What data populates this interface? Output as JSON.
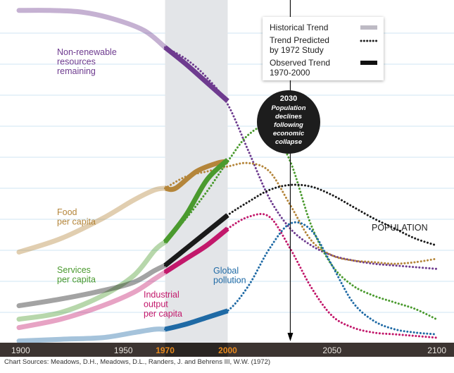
{
  "colors": {
    "nonrenewable": "#6e3b8f",
    "food": "#b4853a",
    "services": "#4a9a2e",
    "population": "#1a1a1a",
    "industrial": "#c2186b",
    "pollution": "#1f6aa5",
    "highlight_band": "#e3e5e8",
    "axis_band": "#3c3431",
    "axis_highlight": "#e8891c"
  },
  "legend": {
    "historical": "Historical Trend",
    "predicted_line1": "Trend Predicted",
    "predicted_line2": "by 1972 Study",
    "observed_line1": "Observed Trend",
    "observed_line2": "1970-2000"
  },
  "callout": {
    "year": "2030",
    "text": [
      "Population",
      "declines",
      "following",
      "economic",
      "collapse"
    ]
  },
  "source_text": "Chart Sources: Meadows, D.H., Meadows, D.L., Randers, J. and Behrens III, W.W. (1972)",
  "chart_data": {
    "type": "line",
    "title": "",
    "xlabel": "",
    "ylabel": "",
    "xlim": [
      1900,
      2100
    ],
    "ylim": [
      0,
      100
    ],
    "x_ticks": [
      "1900",
      "1950",
      "1970",
      "2000",
      "2050",
      "2100"
    ],
    "x_tick_values": [
      1900,
      1950,
      1970,
      2000,
      2050,
      2100
    ],
    "highlight_span": [
      1970,
      2000
    ],
    "marker_year": 2030,
    "series": [
      {
        "key": "nonrenewable",
        "label": [
          "Non-renewable",
          "resources",
          "remaining"
        ],
        "historical": [
          [
            1900,
            99
          ],
          [
            1915,
            99
          ],
          [
            1930,
            98.5
          ],
          [
            1945,
            96.5
          ],
          [
            1960,
            93
          ],
          [
            1970,
            88
          ]
        ],
        "observed": [
          [
            1970,
            88
          ],
          [
            1980,
            83
          ],
          [
            1990,
            77.5
          ],
          [
            2000,
            72
          ]
        ],
        "predicted": [
          [
            1970,
            88
          ],
          [
            1980,
            84.5
          ],
          [
            1990,
            79
          ],
          [
            2000,
            71
          ],
          [
            2010,
            57
          ],
          [
            2020,
            43
          ],
          [
            2030,
            34
          ],
          [
            2040,
            29
          ],
          [
            2050,
            26
          ],
          [
            2060,
            24.5
          ],
          [
            2070,
            23.5
          ],
          [
            2080,
            23
          ],
          [
            2090,
            22.5
          ],
          [
            2100,
            22
          ]
        ]
      },
      {
        "key": "food",
        "label": [
          "Food",
          "per capita"
        ],
        "historical": [
          [
            1900,
            27
          ],
          [
            1920,
            31
          ],
          [
            1940,
            37
          ],
          [
            1955,
            42.5
          ],
          [
            1965,
            45.5
          ],
          [
            1970,
            46
          ]
        ],
        "observed": [
          [
            1970,
            46
          ],
          [
            1975,
            46
          ],
          [
            1985,
            51
          ],
          [
            1995,
            53.5
          ],
          [
            2000,
            54
          ]
        ],
        "predicted": [
          [
            1970,
            46
          ],
          [
            1980,
            49.5
          ],
          [
            1990,
            51
          ],
          [
            2000,
            52.5
          ],
          [
            2010,
            53.5
          ],
          [
            2020,
            51
          ],
          [
            2030,
            41
          ],
          [
            2040,
            30.5
          ],
          [
            2050,
            26
          ],
          [
            2060,
            24.5
          ],
          [
            2070,
            24
          ],
          [
            2080,
            23.5
          ],
          [
            2090,
            24
          ],
          [
            2100,
            25
          ]
        ]
      },
      {
        "key": "services",
        "label": [
          "Services",
          "per capita"
        ],
        "historical": [
          [
            1900,
            7
          ],
          [
            1920,
            9
          ],
          [
            1940,
            14
          ],
          [
            1955,
            20
          ],
          [
            1965,
            27.5
          ],
          [
            1970,
            30
          ]
        ],
        "observed": [
          [
            1970,
            30
          ],
          [
            1980,
            38
          ],
          [
            1990,
            48.5
          ],
          [
            2000,
            54.5
          ]
        ],
        "predicted": [
          [
            1970,
            30
          ],
          [
            1980,
            37
          ],
          [
            1990,
            45
          ],
          [
            2000,
            54
          ],
          [
            2010,
            62
          ],
          [
            2020,
            64
          ],
          [
            2030,
            54
          ],
          [
            2040,
            35
          ],
          [
            2050,
            23
          ],
          [
            2060,
            17
          ],
          [
            2070,
            14
          ],
          [
            2080,
            12
          ],
          [
            2090,
            10
          ],
          [
            2100,
            7
          ]
        ]
      },
      {
        "key": "population",
        "label": [
          "POPULATION"
        ],
        "historical": [
          [
            1900,
            11
          ],
          [
            1920,
            13
          ],
          [
            1940,
            15.5
          ],
          [
            1955,
            18
          ],
          [
            1965,
            21.5
          ],
          [
            1970,
            23
          ]
        ],
        "observed": [
          [
            1970,
            23
          ],
          [
            1980,
            28
          ],
          [
            1990,
            33
          ],
          [
            2000,
            38
          ]
        ],
        "predicted": [
          [
            1970,
            23
          ],
          [
            1980,
            28
          ],
          [
            1990,
            33
          ],
          [
            2000,
            38
          ],
          [
            2010,
            42
          ],
          [
            2020,
            45.5
          ],
          [
            2030,
            47
          ],
          [
            2040,
            46.5
          ],
          [
            2050,
            44
          ],
          [
            2060,
            40.5
          ],
          [
            2070,
            37
          ],
          [
            2080,
            34
          ],
          [
            2090,
            31
          ],
          [
            2100,
            29
          ]
        ]
      },
      {
        "key": "industrial",
        "label": [
          "Industrial",
          "output",
          "per capita"
        ],
        "historical": [
          [
            1900,
            4.5
          ],
          [
            1920,
            7
          ],
          [
            1940,
            11
          ],
          [
            1955,
            15
          ],
          [
            1965,
            19
          ],
          [
            1970,
            21
          ]
        ],
        "observed": [
          [
            1970,
            21
          ],
          [
            1980,
            25
          ],
          [
            1990,
            29
          ],
          [
            2000,
            34
          ]
        ],
        "predicted": [
          [
            1970,
            21
          ],
          [
            1980,
            25
          ],
          [
            1990,
            29.5
          ],
          [
            2000,
            34
          ],
          [
            2010,
            37.5
          ],
          [
            2020,
            37.5
          ],
          [
            2030,
            28
          ],
          [
            2040,
            16.5
          ],
          [
            2050,
            8
          ],
          [
            2060,
            4.5
          ],
          [
            2070,
            3
          ],
          [
            2080,
            2.5
          ],
          [
            2090,
            2
          ],
          [
            2100,
            1.5
          ]
        ]
      },
      {
        "key": "pollution",
        "label": [
          "Global",
          "pollution"
        ],
        "historical": [
          [
            1900,
            0.5
          ],
          [
            1920,
            1
          ],
          [
            1940,
            1.5
          ],
          [
            1955,
            3
          ],
          [
            1965,
            4
          ],
          [
            1970,
            4
          ]
        ],
        "observed": [
          [
            1970,
            4
          ],
          [
            1980,
            5.5
          ],
          [
            1990,
            7.5
          ],
          [
            2000,
            9.5
          ]
        ],
        "predicted": [
          [
            1970,
            4
          ],
          [
            1980,
            5.5
          ],
          [
            1990,
            7.5
          ],
          [
            2000,
            9.5
          ],
          [
            2010,
            17
          ],
          [
            2020,
            28
          ],
          [
            2030,
            35.5
          ],
          [
            2040,
            33.5
          ],
          [
            2050,
            23
          ],
          [
            2060,
            12
          ],
          [
            2070,
            6.5
          ],
          [
            2080,
            4
          ],
          [
            2090,
            3
          ],
          [
            2100,
            2.5
          ]
        ]
      }
    ]
  }
}
